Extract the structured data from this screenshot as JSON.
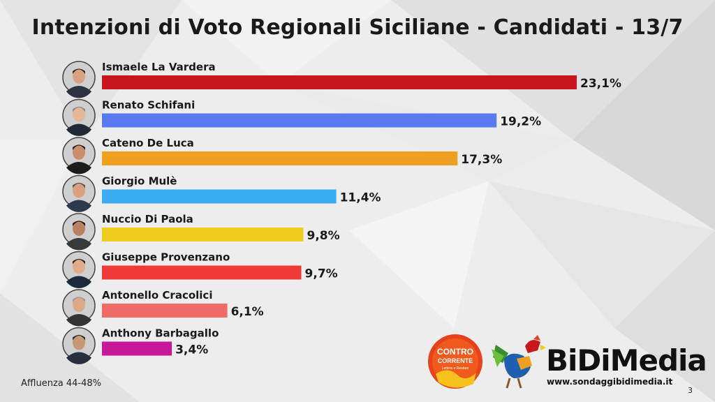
{
  "title": "Intenzioni di Voto Regionali Siciliane - Candidati - 13/7",
  "footer": {
    "turnout": "Affluenza 44-48%",
    "page_number": "3"
  },
  "logos": {
    "left_logo_text_1": "CONTRO",
    "left_logo_text_2": "CORRENTE",
    "left_logo_text_3": "Lettere e Restare",
    "right_brand": "BiDiMedia",
    "right_url": "www.sondaggibidimedia.it"
  },
  "chart_data": {
    "type": "bar",
    "orientation": "horizontal",
    "title": "Intenzioni di Voto Regionali Siciliane - Candidati - 13/7",
    "categories": [
      "Ismaele La Vardera",
      "Renato Schifani",
      "Cateno De Luca",
      "Giorgio Mulè",
      "Nuccio Di Paola",
      "Giuseppe Provenzano",
      "Antonello Cracolici",
      "Anthony Barbagallo"
    ],
    "values": [
      23.1,
      19.2,
      17.3,
      11.4,
      9.8,
      9.7,
      6.1,
      3.4
    ],
    "value_labels": [
      "23,1%",
      "19,2%",
      "17,3%",
      "11,4%",
      "9,8%",
      "9,7%",
      "6,1%",
      "3,4%"
    ],
    "colors": [
      "#c8171c",
      "#5a78f0",
      "#f0a020",
      "#3aacf0",
      "#f0cc1c",
      "#f03a3a",
      "#f06a6a",
      "#c8189a"
    ],
    "xlim": [
      0,
      23.1
    ],
    "grid": false,
    "legend": "none"
  }
}
